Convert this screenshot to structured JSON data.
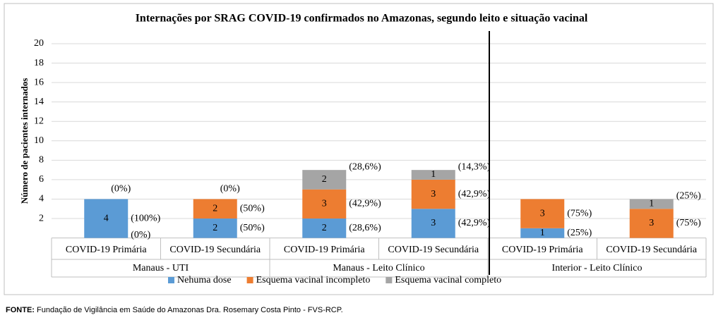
{
  "chart_data": {
    "type": "stacked_bar",
    "title": "Internações por SRAG COVID-19 confirmados no Amazonas, segundo leito e situação vacinal",
    "y_label": "Número de pacientes internados",
    "categories": [
      "COVID-19 Primária",
      "COVID-19 Secundária",
      "COVID-19 Primária",
      "COVID-19 Secundária",
      "COVID-19 Primária",
      "COVID-19 Secundária"
    ],
    "groups": [
      "Manaus - UTI",
      "Manaus - Leito Clínico",
      "Interior - Leito Clínico"
    ],
    "ylim": [
      0,
      20
    ],
    "yticks": [
      2,
      4,
      6,
      8,
      10,
      12,
      14,
      16,
      18,
      20
    ],
    "grid": true,
    "legend": "bottom",
    "series": [
      {
        "name": "Nehuma dose",
        "color": "#5b9bd5",
        "values": [
          4,
          2,
          2,
          3,
          1,
          0
        ],
        "share_labels": [
          "(100%)",
          "(50%)",
          "(28,6%)",
          "(42,9%)",
          "(25%)",
          null
        ]
      },
      {
        "name": "Esquema vacinal incompleto",
        "color": "#ed7d31",
        "values": [
          0,
          2,
          3,
          3,
          3,
          3
        ],
        "share_labels": [
          "(0%)",
          "(50%)",
          "(42,9%)",
          "(42,9%)",
          "(75%)",
          "(75%)"
        ]
      },
      {
        "name": "Esquema vacinal completo",
        "color": "#a5a5a5",
        "values": [
          0,
          0,
          2,
          1,
          0,
          1
        ],
        "share_labels": [
          "(0%)",
          "(0%)",
          "(28,6%)",
          "(14,3%)",
          null,
          "(25%)"
        ]
      }
    ]
  },
  "footer": {
    "source_label": "FONTE:",
    "source_text": "Fundação de Vigilância em Saúde do Amazonas Dra. Rosemary Costa Pinto - FVS-RCP."
  }
}
